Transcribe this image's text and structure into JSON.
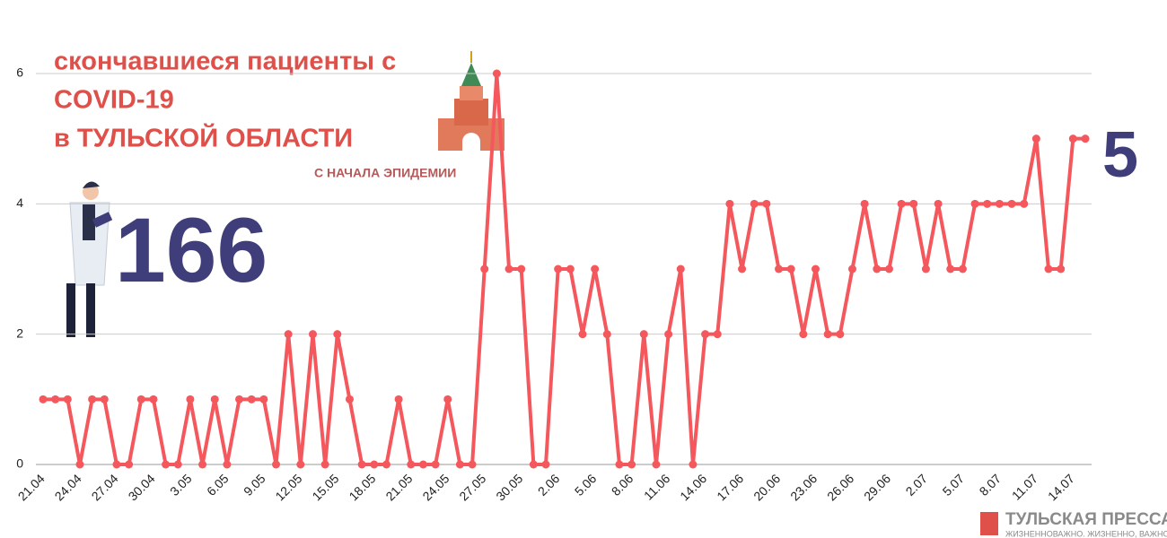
{
  "chart_data": {
    "type": "line",
    "title_lines": [
      "скончавшиеся пациенты с",
      "COVID-19",
      "в ТУЛЬСКОЙ ОБЛАСТИ"
    ],
    "subtitle": "С НАЧАЛА ЭПИДЕМИИ",
    "total": "166",
    "latest": "5",
    "logo": "ТУЛЬСКАЯ ПРЕССА",
    "logo_tagline": "ЖИЗНЕННОВАЖНО. ЖИЗНЕННО, ВАЖНО",
    "categories": [
      "21.04",
      null,
      null,
      "24.04",
      null,
      null,
      "27.04",
      null,
      null,
      "30.04",
      null,
      null,
      "3.05",
      null,
      null,
      "6.05",
      null,
      null,
      "9.05",
      null,
      null,
      "12.05",
      null,
      null,
      "15.05",
      null,
      null,
      "18.05",
      null,
      null,
      "21.05",
      null,
      null,
      "24.05",
      null,
      null,
      "27.05",
      null,
      null,
      "30.05",
      null,
      null,
      "2.06",
      null,
      null,
      "5.06",
      null,
      null,
      "8.06",
      null,
      null,
      "11.06",
      null,
      null,
      "14.06",
      null,
      null,
      "17.06",
      null,
      null,
      "20.06",
      null,
      null,
      "23.06",
      null,
      null,
      "26.06",
      null,
      null,
      "29.06",
      null,
      null,
      "2.07",
      null,
      null,
      "5.07",
      null,
      null,
      "8.07",
      null,
      null,
      "11.07",
      null,
      null,
      "14.07",
      null
    ],
    "values": [
      1,
      1,
      1,
      0,
      1,
      1,
      0,
      0,
      1,
      1,
      0,
      0,
      1,
      0,
      1,
      0,
      1,
      1,
      1,
      0,
      2,
      0,
      2,
      0,
      2,
      1,
      0,
      0,
      0,
      1,
      0,
      0,
      0,
      1,
      0,
      0,
      3,
      6,
      3,
      3,
      0,
      0,
      3,
      3,
      2,
      3,
      2,
      0,
      0,
      2,
      0,
      2,
      3,
      0,
      2,
      2,
      4,
      3,
      4,
      4,
      3,
      3,
      2,
      3,
      2,
      2,
      3,
      4,
      3,
      3,
      4,
      4,
      3,
      4,
      3,
      3,
      4,
      4,
      4,
      4,
      4,
      5,
      3,
      3,
      5,
      5
    ],
    "color": "#f4575c",
    "ylim": [
      0,
      6
    ],
    "yticks": [
      0,
      2,
      4,
      6
    ],
    "grid": true
  }
}
